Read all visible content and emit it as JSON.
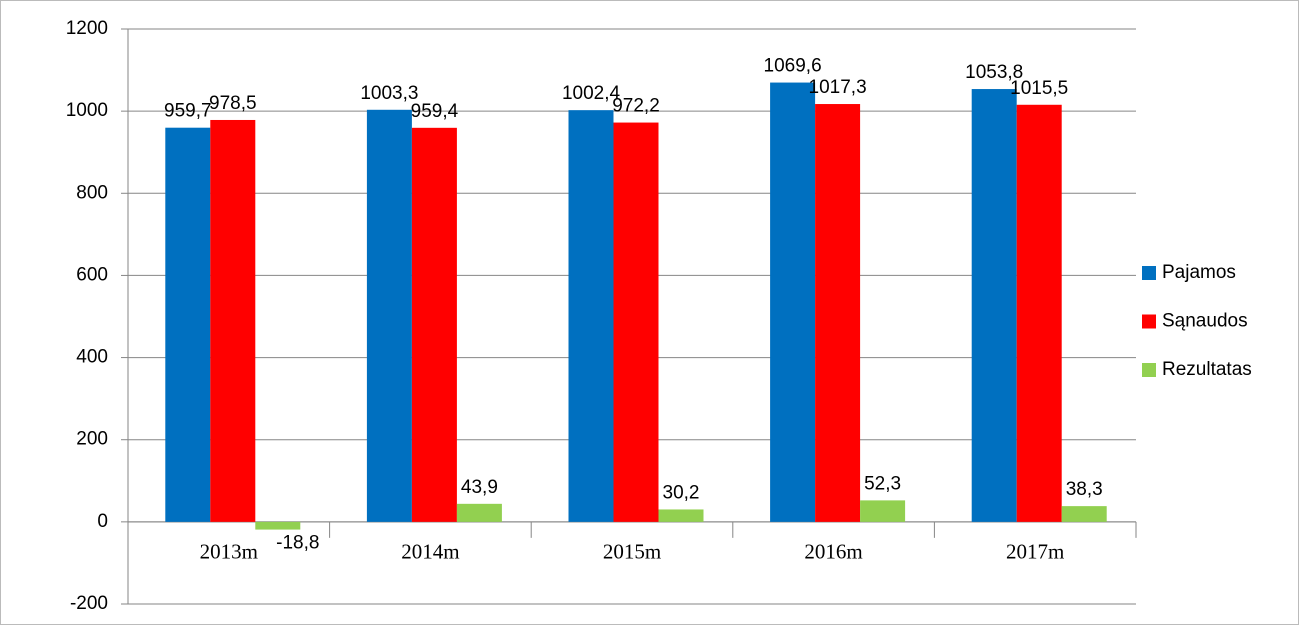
{
  "chart_data": {
    "type": "bar",
    "categories": [
      "2013m",
      "2014m",
      "2015m",
      "2016m",
      "2017m"
    ],
    "series": [
      {
        "name": "Pajamos",
        "color": "#0070c0",
        "values": [
          959.7,
          1003.3,
          1002.4,
          1069.6,
          1053.8
        ],
        "value_labels": [
          "959,7",
          "1003,3",
          "1002,4",
          "1069,6",
          "1053,8"
        ]
      },
      {
        "name": "Sąnaudos",
        "color": "#ff0000",
        "values": [
          978.5,
          959.4,
          972.2,
          1017.3,
          1015.5
        ],
        "value_labels": [
          "978,5",
          "959,4",
          "972,2",
          "1017,3",
          "1015,5"
        ]
      },
      {
        "name": "Rezultatas",
        "color": "#92d050",
        "values": [
          -18.8,
          43.9,
          30.2,
          52.3,
          38.3
        ],
        "value_labels": [
          "-18,8",
          "43,9",
          "30,2",
          "52,3",
          "38,3"
        ]
      }
    ],
    "ylim": [
      -200,
      1200
    ],
    "yticks": [
      -200,
      0,
      200,
      400,
      600,
      800,
      1000,
      1200
    ],
    "grid": true,
    "legend": "right"
  }
}
